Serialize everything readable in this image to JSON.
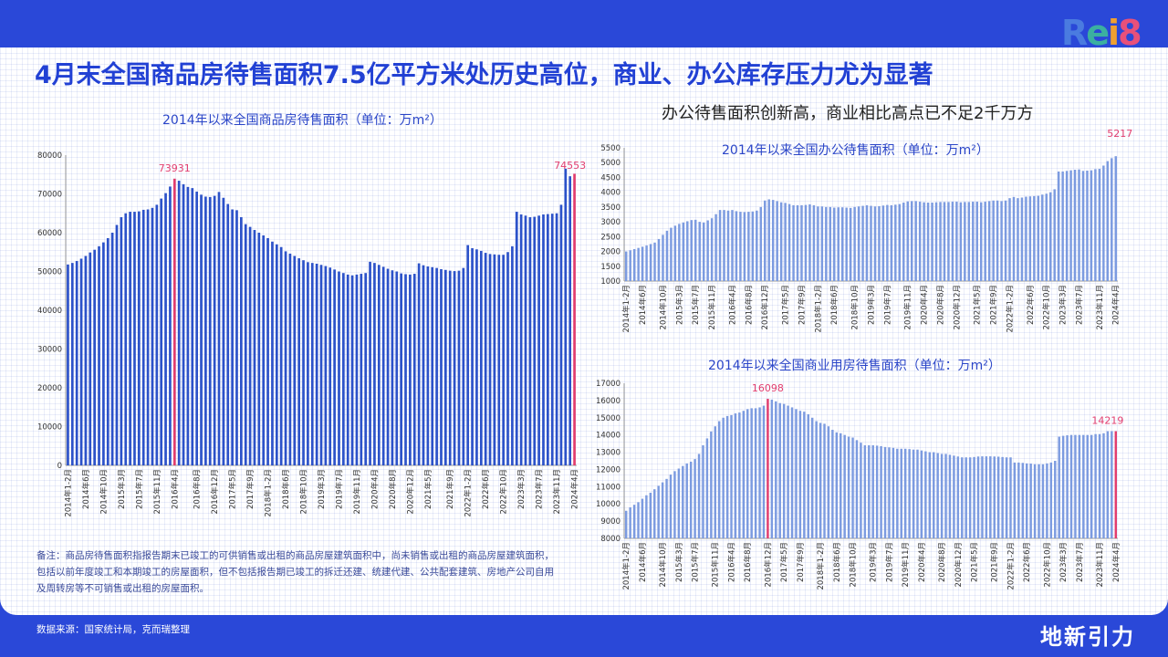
{
  "header": {
    "title": "4月末全国商品房待售面积7.5亿平方米处历史高位，商业、办公库存压力尤为显著",
    "subtitle_right": "办公待售面积创新高，商业相比高点已不足2千万方",
    "logo": "Rei8"
  },
  "footer": {
    "note": "备注：商品房待售面积指报告期末已竣工的可供销售或出租的商品房屋建筑面积中，尚未销售或出租的商品房屋建筑面积，包括以前年度竣工和本期竣工的房屋面积，但不包括报告期已竣工的拆迁还建、统建代建、公共配套建筑、房地产公司自用及周转房等不可销售或出租的房屋面积。",
    "source": "数据来源：国家统计局，克而瑞整理",
    "brand": "地新引力"
  },
  "colors": {
    "bar_main": "#2c52c9",
    "bar_light": "#7c9be0",
    "highlight": "#e23d6e",
    "title_blue": "#2241d4"
  },
  "chart_data": [
    {
      "id": "total",
      "type": "bar",
      "title": "2014年以来全国商品房待售面积（单位：万m²）",
      "ylim": [
        0,
        80000
      ],
      "yticks": [
        0,
        10000,
        20000,
        30000,
        40000,
        50000,
        60000,
        70000,
        80000
      ],
      "xtick_labels": [
        "2014年1-2月",
        "2014年6月",
        "2014年10月",
        "2015年3月",
        "2015年7月",
        "2015年11月",
        "2016年4月",
        "2016年8月",
        "2016年12月",
        "2017年5月",
        "2017年9月",
        "2018年1-2月",
        "2018年6月",
        "2018年10月",
        "2019年3月",
        "2019年7月",
        "2019年11月",
        "2020年4月",
        "2020年8月",
        "2020年12月",
        "2021年5月",
        "2021年9月",
        "2022年1-2月",
        "2022年6月",
        "2022年10月",
        "2023年3月",
        "2023年7月",
        "2023年11月",
        "2024年4月"
      ],
      "values": [
        51800,
        52200,
        52700,
        53300,
        54000,
        54900,
        55600,
        56500,
        57500,
        58600,
        60000,
        62000,
        64000,
        65000,
        65400,
        65400,
        65500,
        65900,
        66000,
        66400,
        67200,
        68800,
        70200,
        71900,
        73931,
        73400,
        72500,
        71800,
        71500,
        70600,
        69800,
        69300,
        69200,
        69500,
        70500,
        69000,
        67400,
        66000,
        65800,
        64000,
        62200,
        61500,
        60700,
        60000,
        59300,
        58600,
        57700,
        57000,
        56300,
        55200,
        54600,
        54000,
        53400,
        52900,
        52400,
        52200,
        52000,
        51700,
        51400,
        51000,
        50500,
        50000,
        49600,
        49200,
        49000,
        49200,
        49400,
        49600,
        52500,
        52200,
        51700,
        51200,
        50700,
        50300,
        50000,
        49500,
        49300,
        49200,
        49400,
        52100,
        51600,
        51300,
        51100,
        50900,
        50600,
        50400,
        50200,
        50100,
        50200,
        50900,
        56800,
        56000,
        55700,
        55300,
        54800,
        54500,
        54400,
        54300,
        54300,
        55000,
        56500,
        65400,
        64700,
        64400,
        64000,
        64100,
        64400,
        64700,
        64800,
        64900,
        65000,
        67200,
        76500,
        74553,
        75200
      ],
      "highlight_indices": [
        24,
        114
      ],
      "annotations": [
        {
          "index": 24,
          "label": "73931"
        },
        {
          "index": 113,
          "label": "74553"
        }
      ]
    },
    {
      "id": "office",
      "type": "bar",
      "title": "2014年以来全国办公待售面积（单位：万m²）",
      "ylim": [
        1000,
        5500
      ],
      "yticks": [
        1000,
        1500,
        2000,
        2500,
        3000,
        3500,
        4000,
        4500,
        5000,
        5500
      ],
      "xtick_labels": [
        "2014年1-2月",
        "2014年6月",
        "2014年10月",
        "2015年3月",
        "2015年7月",
        "2015年11月",
        "2016年4月",
        "2016年8月",
        "2016年12月",
        "2017年5月",
        "2017年9月",
        "2018年1-2月",
        "2018年6月",
        "2018年10月",
        "2019年3月",
        "2019年7月",
        "2019年11月",
        "2020年4月",
        "2020年8月",
        "2020年12月",
        "2021年5月",
        "2021年9月",
        "2022年1-2月",
        "2022年6月",
        "2022年10月",
        "2023年3月",
        "2023年7月",
        "2023年11月",
        "2024年4月"
      ],
      "values": [
        2000,
        2040,
        2080,
        2120,
        2160,
        2200,
        2250,
        2300,
        2420,
        2560,
        2700,
        2800,
        2870,
        2930,
        2980,
        3020,
        3060,
        3070,
        3000,
        2980,
        3050,
        3120,
        3260,
        3400,
        3400,
        3380,
        3400,
        3360,
        3340,
        3330,
        3340,
        3350,
        3380,
        3500,
        3720,
        3760,
        3740,
        3700,
        3660,
        3640,
        3600,
        3560,
        3560,
        3560,
        3570,
        3590,
        3560,
        3520,
        3520,
        3500,
        3500,
        3480,
        3490,
        3490,
        3480,
        3470,
        3500,
        3520,
        3540,
        3560,
        3540,
        3520,
        3530,
        3550,
        3570,
        3560,
        3580,
        3600,
        3650,
        3690,
        3700,
        3700,
        3680,
        3660,
        3650,
        3650,
        3660,
        3670,
        3670,
        3670,
        3680,
        3680,
        3660,
        3670,
        3670,
        3680,
        3680,
        3660,
        3680,
        3700,
        3720,
        3720,
        3700,
        3720,
        3800,
        3840,
        3800,
        3820,
        3850,
        3860,
        3870,
        3880,
        3920,
        3950,
        4000,
        4100,
        4700,
        4700,
        4720,
        4740,
        4760,
        4770,
        4720,
        4730,
        4740,
        4780,
        4790,
        4900,
        5050,
        5150,
        5217
      ],
      "highlight_indices": [
        121
      ],
      "annotations": [
        {
          "index": 121,
          "label": "5217"
        }
      ]
    },
    {
      "id": "commercial",
      "type": "bar",
      "title": "2014年以来全国商业用房待售面积（单位：万m²）",
      "ylim": [
        8000,
        17000
      ],
      "yticks": [
        8000,
        9000,
        10000,
        11000,
        12000,
        13000,
        14000,
        15000,
        16000,
        17000
      ],
      "xtick_labels": [
        "2014年1-2月",
        "2014年6月",
        "2014年10月",
        "2015年3月",
        "2015年7月",
        "2015年11月",
        "2016年4月",
        "2016年8月",
        "2016年12月",
        "2017年5月",
        "2017年9月",
        "2018年1-2月",
        "2018年6月",
        "2018年10月",
        "2019年3月",
        "2019年7月",
        "2019年11月",
        "2020年4月",
        "2020年8月",
        "2020年12月",
        "2021年5月",
        "2021年9月",
        "2022年1-2月",
        "2022年6月",
        "2022年10月",
        "2023年3月",
        "2023年7月",
        "2023年11月",
        "2024年4月"
      ],
      "values": [
        9600,
        9800,
        9950,
        10100,
        10300,
        10500,
        10650,
        10850,
        11050,
        11250,
        11450,
        11700,
        11900,
        12050,
        12200,
        12350,
        12450,
        12600,
        12900,
        13400,
        13800,
        14200,
        14500,
        14800,
        15000,
        15100,
        15150,
        15250,
        15300,
        15400,
        15500,
        15550,
        15550,
        15600,
        15700,
        16098,
        16050,
        15950,
        15850,
        15800,
        15700,
        15600,
        15500,
        15400,
        15350,
        15200,
        15000,
        14800,
        14700,
        14650,
        14500,
        14300,
        14150,
        14100,
        14000,
        13900,
        13850,
        13700,
        13550,
        13400,
        13400,
        13400,
        13380,
        13350,
        13300,
        13280,
        13250,
        13200,
        13200,
        13200,
        13180,
        13150,
        13150,
        13100,
        13050,
        13000,
        13000,
        12950,
        12900,
        12900,
        12850,
        12800,
        12750,
        12700,
        12700,
        12700,
        12720,
        12750,
        12760,
        12760,
        12760,
        12750,
        12740,
        12720,
        12700,
        12700,
        12400,
        12400,
        12380,
        12350,
        12340,
        12300,
        12300,
        12300,
        12350,
        12400,
        12500,
        13900,
        13950,
        13980,
        14000,
        14000,
        14000,
        14000,
        14000,
        14000,
        14050,
        14050,
        14100,
        14219,
        14219,
        14219
      ],
      "highlight_indices": [
        35,
        121
      ],
      "annotations": [
        {
          "index": 35,
          "label": "16098"
        },
        {
          "index": 119,
          "label": "14219"
        }
      ]
    }
  ]
}
